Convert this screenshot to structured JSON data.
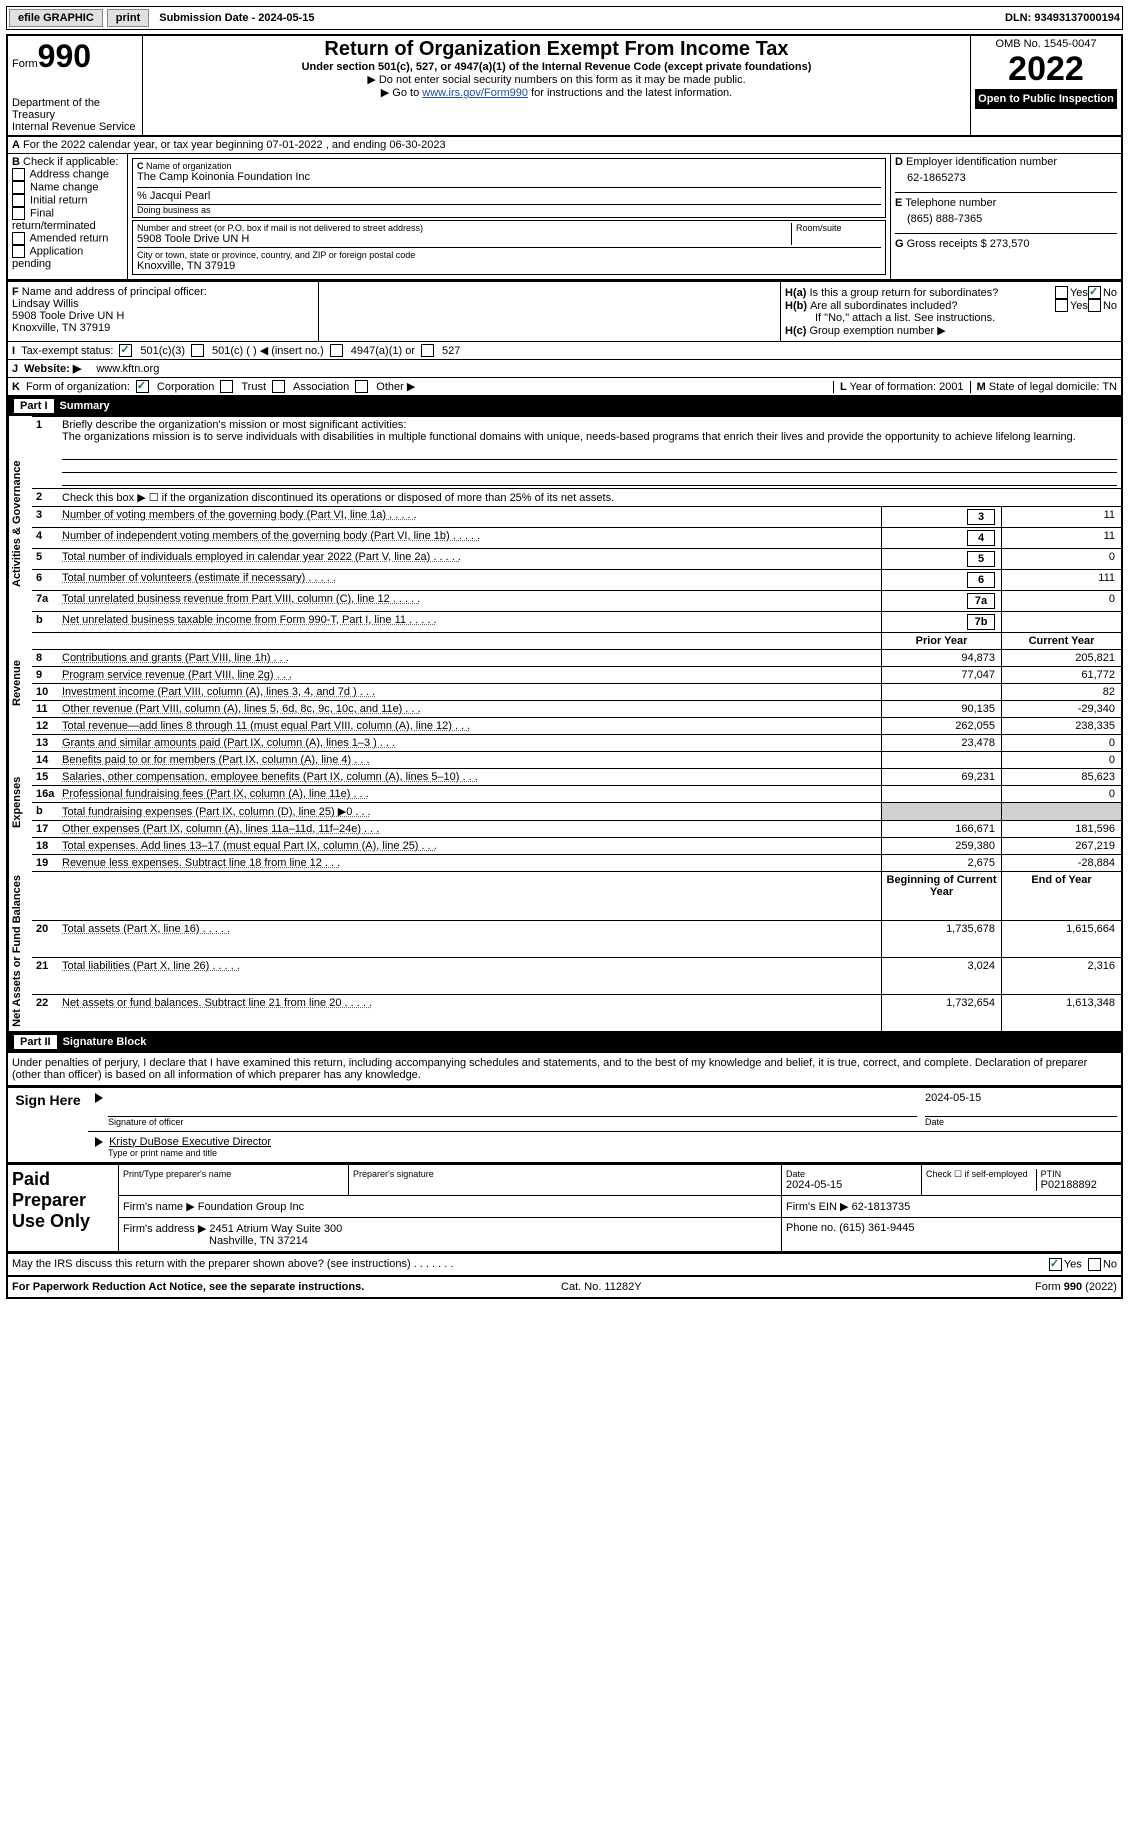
{
  "topbar": {
    "efile": "efile GRAPHIC",
    "print": "print",
    "submission": "Submission Date - 2024-05-15",
    "dln": "DLN: 93493137000194"
  },
  "header": {
    "form_label": "Form",
    "form_num": "990",
    "dept": "Department of the Treasury",
    "irs": "Internal Revenue Service",
    "title": "Return of Organization Exempt From Income Tax",
    "sub": "Under section 501(c), 527, or 4947(a)(1) of the Internal Revenue Code (except private foundations)",
    "note1": "▶ Do not enter social security numbers on this form as it may be made public.",
    "note2_pre": "▶ Go to ",
    "note2_link": "www.irs.gov/Form990",
    "note2_post": " for instructions and the latest information.",
    "omb": "OMB No. 1545-0047",
    "year": "2022",
    "open": "Open to Public Inspection"
  },
  "secA": "For the 2022 calendar year, or tax year beginning 07-01-2022    , and ending 06-30-2023",
  "colB": {
    "head": "Check if applicable:",
    "items": [
      "Address change",
      "Name change",
      "Initial return",
      "Final return/terminated",
      "Amended return",
      "Application pending"
    ]
  },
  "colC": {
    "name_lbl": "Name of organization",
    "name": "The Camp Koinonia Foundation Inc",
    "co": "% Jacqui Pearl",
    "dba_lbl": "Doing business as",
    "addr_lbl": "Number and street (or P.O. box if mail is not delivered to street address)",
    "room_lbl": "Room/suite",
    "addr": "5908 Toole Drive UN H",
    "city_lbl": "City or town, state or province, country, and ZIP or foreign postal code",
    "city": "Knoxville, TN  37919"
  },
  "colD": {
    "ein_lbl": "Employer identification number",
    "ein": "62-1865273",
    "tel_lbl": "Telephone number",
    "tel": "(865) 888-7365",
    "gross_lbl": "Gross receipts $",
    "gross": "273,570"
  },
  "fh": {
    "f_lbl": "Name and address of principal officer:",
    "f_name": "Lindsay Willis",
    "f_addr": "5908 Toole Drive UN H",
    "f_city": "Knoxville, TN  37919",
    "ha": "Is this a group return for subordinates?",
    "hb": "Are all subordinates included?",
    "hb_note": "If \"No,\" attach a list. See instructions.",
    "hc": "Group exemption number ▶",
    "yes": "Yes",
    "no": "No"
  },
  "rowI": {
    "lbl": "Tax-exempt status:",
    "opts": [
      "501(c)(3)",
      "501(c) (  ) ◀ (insert no.)",
      "4947(a)(1) or",
      "527"
    ]
  },
  "rowJ": {
    "lbl": "Website: ▶",
    "val": "www.kftn.org"
  },
  "rowK": {
    "lbl": "Form of organization:",
    "opts": [
      "Corporation",
      "Trust",
      "Association",
      "Other ▶"
    ],
    "l_lbl": "Year of formation:",
    "l_val": "2001",
    "m_lbl": "State of legal domicile:",
    "m_val": "TN"
  },
  "part1": {
    "title": "Part I",
    "name": "Summary",
    "q1": "Briefly describe the organization's mission or most significant activities:",
    "q1_text": "The organizations mission is to serve individuals with disabilities in multiple functional domains with unique, needs-based programs that enrich their lives and provide the opportunity to achieve lifelong learning.",
    "q2": "Check this box ▶ ☐ if the organization discontinued its operations or disposed of more than 25% of its net assets.",
    "rows_ag": [
      {
        "n": "3",
        "d": "Number of voting members of the governing body (Part VI, line 1a)",
        "b": "3",
        "v": "11"
      },
      {
        "n": "4",
        "d": "Number of independent voting members of the governing body (Part VI, line 1b)",
        "b": "4",
        "v": "11"
      },
      {
        "n": "5",
        "d": "Total number of individuals employed in calendar year 2022 (Part V, line 2a)",
        "b": "5",
        "v": "0"
      },
      {
        "n": "6",
        "d": "Total number of volunteers (estimate if necessary)",
        "b": "6",
        "v": "111"
      },
      {
        "n": "7a",
        "d": "Total unrelated business revenue from Part VIII, column (C), line 12",
        "b": "7a",
        "v": "0"
      },
      {
        "n": "b",
        "d": "Net unrelated business taxable income from Form 990-T, Part I, line 11",
        "b": "7b",
        "v": ""
      }
    ],
    "hdr_prior": "Prior Year",
    "hdr_curr": "Current Year",
    "rows_rev": [
      {
        "n": "8",
        "d": "Contributions and grants (Part VIII, line 1h)",
        "p": "94,873",
        "c": "205,821"
      },
      {
        "n": "9",
        "d": "Program service revenue (Part VIII, line 2g)",
        "p": "77,047",
        "c": "61,772"
      },
      {
        "n": "10",
        "d": "Investment income (Part VIII, column (A), lines 3, 4, and 7d )",
        "p": "",
        "c": "82"
      },
      {
        "n": "11",
        "d": "Other revenue (Part VIII, column (A), lines 5, 6d, 8c, 9c, 10c, and 11e)",
        "p": "90,135",
        "c": "-29,340"
      },
      {
        "n": "12",
        "d": "Total revenue—add lines 8 through 11 (must equal Part VIII, column (A), line 12)",
        "p": "262,055",
        "c": "238,335"
      }
    ],
    "rows_exp": [
      {
        "n": "13",
        "d": "Grants and similar amounts paid (Part IX, column (A), lines 1–3 )",
        "p": "23,478",
        "c": "0"
      },
      {
        "n": "14",
        "d": "Benefits paid to or for members (Part IX, column (A), line 4)",
        "p": "",
        "c": "0"
      },
      {
        "n": "15",
        "d": "Salaries, other compensation, employee benefits (Part IX, column (A), lines 5–10)",
        "p": "69,231",
        "c": "85,623"
      },
      {
        "n": "16a",
        "d": "Professional fundraising fees (Part IX, column (A), line 11e)",
        "p": "",
        "c": "0"
      },
      {
        "n": "b",
        "d": "Total fundraising expenses (Part IX, column (D), line 25) ▶0",
        "p": "SHADE",
        "c": "SHADE"
      },
      {
        "n": "17",
        "d": "Other expenses (Part IX, column (A), lines 11a–11d, 11f–24e)",
        "p": "166,671",
        "c": "181,596"
      },
      {
        "n": "18",
        "d": "Total expenses. Add lines 13–17 (must equal Part IX, column (A), line 25)",
        "p": "259,380",
        "c": "267,219"
      },
      {
        "n": "19",
        "d": "Revenue less expenses. Subtract line 18 from line 12",
        "p": "2,675",
        "c": "-28,884"
      }
    ],
    "hdr_beg": "Beginning of Current Year",
    "hdr_end": "End of Year",
    "rows_na": [
      {
        "n": "20",
        "d": "Total assets (Part X, line 16)",
        "p": "1,735,678",
        "c": "1,615,664"
      },
      {
        "n": "21",
        "d": "Total liabilities (Part X, line 26)",
        "p": "3,024",
        "c": "2,316"
      },
      {
        "n": "22",
        "d": "Net assets or fund balances. Subtract line 21 from line 20",
        "p": "1,732,654",
        "c": "1,613,348"
      }
    ],
    "tab_ag": "Activities & Governance",
    "tab_rev": "Revenue",
    "tab_exp": "Expenses",
    "tab_na": "Net Assets or Fund Balances"
  },
  "part2": {
    "title": "Part II",
    "name": "Signature Block",
    "decl": "Under penalties of perjury, I declare that I have examined this return, including accompanying schedules and statements, and to the best of my knowledge and belief, it is true, correct, and complete. Declaration of preparer (other than officer) is based on all information of which preparer has any knowledge.",
    "sign_here": "Sign Here",
    "sig_off": "Signature of officer",
    "date": "Date",
    "date_v": "2024-05-15",
    "name_title": "Kristy DuBose  Executive Director",
    "name_lbl": "Type or print name and title",
    "paid": "Paid Preparer Use Only",
    "pp_name": "Print/Type preparer's name",
    "pp_sig": "Preparer's signature",
    "pp_date": "Date",
    "pp_date_v": "2024-05-15",
    "pp_check": "Check ☐ if self-employed",
    "ptin_lbl": "PTIN",
    "ptin": "P02188892",
    "firm_name_lbl": "Firm's name   ▶",
    "firm_name": "Foundation Group Inc",
    "firm_ein_lbl": "Firm's EIN ▶",
    "firm_ein": "62-1813735",
    "firm_addr_lbl": "Firm's address ▶",
    "firm_addr": "2451 Atrium Way Suite 300",
    "firm_city": "Nashville, TN  37214",
    "phone_lbl": "Phone no.",
    "phone": "(615) 361-9445"
  },
  "footer": {
    "q": "May the IRS discuss this return with the preparer shown above? (see instructions)",
    "yes": "Yes",
    "no": "No",
    "pra": "For Paperwork Reduction Act Notice, see the separate instructions.",
    "cat": "Cat. No. 11282Y",
    "form": "Form 990 (2022)"
  }
}
